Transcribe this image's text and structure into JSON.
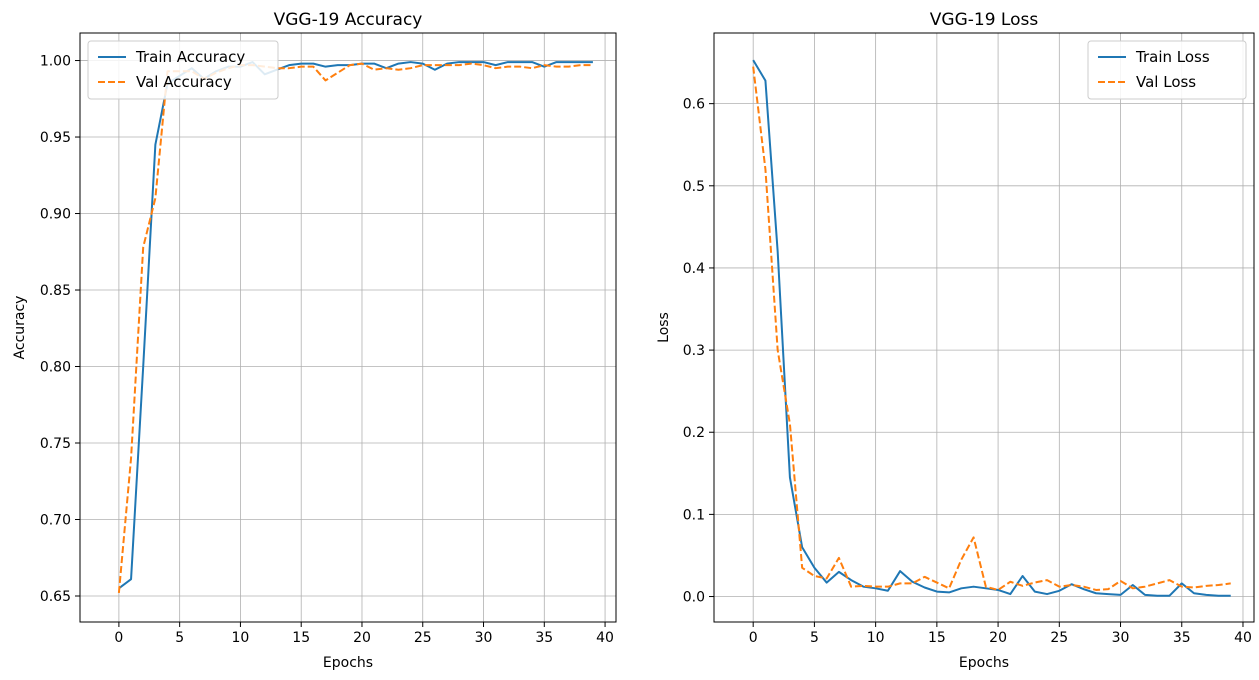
{
  "chart_data": [
    {
      "type": "line",
      "title": "VGG-19 Accuracy",
      "xlabel": "Epochs",
      "ylabel": "Accuracy",
      "xlim": [
        -3.2,
        40.9
      ],
      "ylim": [
        0.633,
        1.018
      ],
      "xticks": [
        0,
        5,
        10,
        15,
        20,
        25,
        30,
        35,
        40
      ],
      "yticks": [
        0.65,
        0.7,
        0.75,
        0.8,
        0.85,
        0.9,
        0.95,
        1.0
      ],
      "ytick_labels": [
        "0.65",
        "0.70",
        "0.75",
        "0.80",
        "0.85",
        "0.90",
        "0.95",
        "1.00"
      ],
      "grid": true,
      "legend_position": "upper-left",
      "series": [
        {
          "name": "Train Accuracy",
          "color": "#1f77b4",
          "style": "solid",
          "x": [
            0,
            1,
            2,
            3,
            4,
            5,
            6,
            7,
            8,
            9,
            10,
            11,
            12,
            13,
            14,
            15,
            16,
            17,
            18,
            19,
            20,
            21,
            22,
            23,
            24,
            25,
            26,
            27,
            28,
            29,
            30,
            31,
            32,
            33,
            34,
            35,
            36,
            37,
            38,
            39
          ],
          "values": [
            0.655,
            0.661,
            0.8,
            0.945,
            0.985,
            0.99,
            0.995,
            0.988,
            0.993,
            0.996,
            0.996,
            0.999,
            0.991,
            0.994,
            0.997,
            0.998,
            0.998,
            0.996,
            0.997,
            0.997,
            0.998,
            0.998,
            0.995,
            0.998,
            0.999,
            0.998,
            0.994,
            0.998,
            0.999,
            0.999,
            0.999,
            0.997,
            0.999,
            0.999,
            0.999,
            0.996,
            0.999,
            0.999,
            0.999,
            0.999
          ]
        },
        {
          "name": "Val Accuracy",
          "color": "#ff7f0e",
          "style": "dashed",
          "x": [
            0,
            1,
            2,
            3,
            4,
            5,
            6,
            7,
            8,
            9,
            10,
            11,
            12,
            13,
            14,
            15,
            16,
            17,
            18,
            19,
            20,
            21,
            22,
            23,
            24,
            25,
            26,
            27,
            28,
            29,
            30,
            31,
            32,
            33,
            34,
            35,
            36,
            37,
            38,
            39
          ],
          "values": [
            0.652,
            0.74,
            0.878,
            0.91,
            0.993,
            0.993,
            0.993,
            0.988,
            0.992,
            0.995,
            0.997,
            0.997,
            0.996,
            0.995,
            0.995,
            0.996,
            0.996,
            0.987,
            0.992,
            0.997,
            0.998,
            0.994,
            0.995,
            0.994,
            0.995,
            0.997,
            0.997,
            0.997,
            0.997,
            0.998,
            0.997,
            0.995,
            0.996,
            0.996,
            0.995,
            0.997,
            0.996,
            0.996,
            0.997,
            0.997
          ]
        }
      ]
    },
    {
      "type": "line",
      "title": "VGG-19 Loss",
      "xlabel": "Epochs",
      "ylabel": "Loss",
      "xlim": [
        -3.2,
        40.9
      ],
      "ylim": [
        -0.031,
        0.686
      ],
      "xticks": [
        0,
        5,
        10,
        15,
        20,
        25,
        30,
        35,
        40
      ],
      "yticks": [
        0.0,
        0.1,
        0.2,
        0.3,
        0.4,
        0.5,
        0.6
      ],
      "ytick_labels": [
        "0.0",
        "0.1",
        "0.2",
        "0.3",
        "0.4",
        "0.5",
        "0.6"
      ],
      "grid": true,
      "legend_position": "upper-right",
      "series": [
        {
          "name": "Train Loss",
          "color": "#1f77b4",
          "style": "solid",
          "x": [
            0,
            1,
            2,
            3,
            4,
            5,
            6,
            7,
            8,
            9,
            10,
            11,
            12,
            13,
            14,
            15,
            16,
            17,
            18,
            19,
            20,
            21,
            22,
            23,
            24,
            25,
            26,
            27,
            28,
            29,
            30,
            31,
            32,
            33,
            34,
            35,
            36,
            37,
            38,
            39
          ],
          "values": [
            0.653,
            0.628,
            0.42,
            0.145,
            0.06,
            0.035,
            0.017,
            0.03,
            0.02,
            0.012,
            0.01,
            0.007,
            0.031,
            0.018,
            0.011,
            0.006,
            0.005,
            0.01,
            0.012,
            0.01,
            0.008,
            0.003,
            0.025,
            0.006,
            0.003,
            0.007,
            0.015,
            0.009,
            0.004,
            0.003,
            0.002,
            0.014,
            0.002,
            0.001,
            0.001,
            0.016,
            0.004,
            0.002,
            0.001,
            0.001
          ]
        },
        {
          "name": "Val Loss",
          "color": "#ff7f0e",
          "style": "dashed",
          "x": [
            0,
            1,
            2,
            3,
            4,
            5,
            6,
            7,
            8,
            9,
            10,
            11,
            12,
            13,
            14,
            15,
            16,
            17,
            18,
            19,
            20,
            21,
            22,
            23,
            24,
            25,
            26,
            27,
            28,
            29,
            30,
            31,
            32,
            33,
            34,
            35,
            36,
            37,
            38,
            39
          ],
          "values": [
            0.645,
            0.52,
            0.3,
            0.21,
            0.035,
            0.025,
            0.022,
            0.047,
            0.012,
            0.013,
            0.012,
            0.012,
            0.016,
            0.016,
            0.024,
            0.017,
            0.01,
            0.045,
            0.072,
            0.012,
            0.008,
            0.018,
            0.013,
            0.017,
            0.02,
            0.012,
            0.014,
            0.012,
            0.008,
            0.009,
            0.019,
            0.01,
            0.012,
            0.016,
            0.02,
            0.012,
            0.011,
            0.013,
            0.014,
            0.016
          ]
        }
      ]
    }
  ]
}
